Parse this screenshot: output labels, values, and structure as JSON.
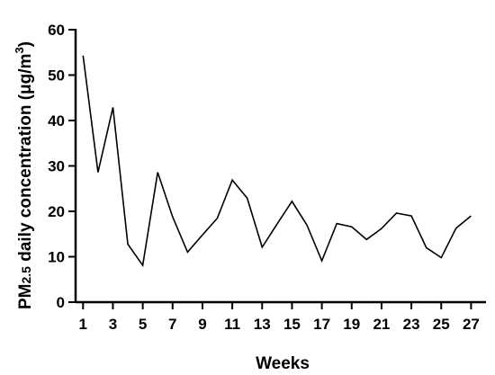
{
  "chart_data": {
    "type": "line",
    "title": "",
    "xlabel": "Weeks",
    "ylabel": {
      "prefix": "PM",
      "subscript": "2.5",
      "main": " daily concentration (μg/m",
      "superscript": "3",
      "suffix": ")"
    },
    "xlim": [
      0.5,
      28
    ],
    "ylim": [
      0,
      60
    ],
    "x_ticks": [
      1,
      3,
      5,
      7,
      9,
      11,
      13,
      15,
      17,
      19,
      21,
      23,
      25,
      27
    ],
    "y_ticks": [
      0,
      10,
      20,
      30,
      40,
      50,
      60
    ],
    "grid": false,
    "legend": "none",
    "series": [
      {
        "color": "#000000",
        "x": [
          1,
          2,
          3,
          4,
          5,
          6,
          7,
          8,
          9,
          10,
          11,
          12,
          13,
          14,
          15,
          16,
          17,
          18,
          19,
          20,
          21,
          22,
          23,
          24,
          25,
          26,
          27
        ],
        "y": [
          54.3,
          28.6,
          42.9,
          12.8,
          8.1,
          28.6,
          18.8,
          11.0,
          14.8,
          18.5,
          26.9,
          22.9,
          12.1,
          17.2,
          22.2,
          17.0,
          9.1,
          17.3,
          16.6,
          13.8,
          16.2,
          19.6,
          19.0,
          12.0,
          9.8,
          16.3,
          19.0
        ]
      }
    ]
  }
}
